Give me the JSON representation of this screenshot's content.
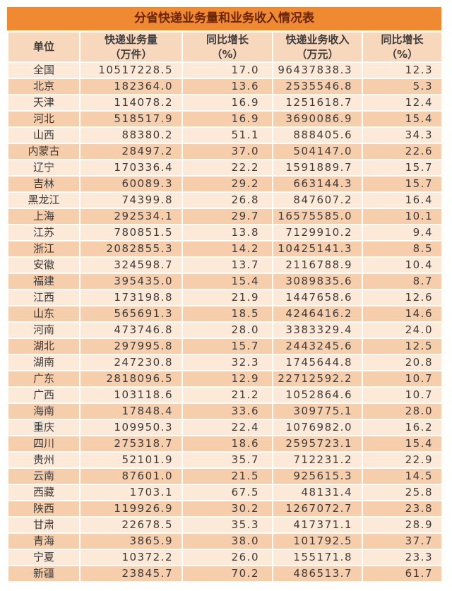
{
  "title": "分省快递业务量和业务收入情况表",
  "colors": {
    "title_bar_bg": "#EF8A33",
    "title_text": "#6B2503",
    "header_bg": "#F8D8BC",
    "row_light": "#FCE9D7",
    "row_dark": "#F7CEAB",
    "grid_line": "#FFFFFF",
    "body_text": "#3C3C3C"
  },
  "chart_data": {
    "type": "table",
    "title": "分省快递业务量和业务收入情况表",
    "columns": [
      {
        "line1": "单位",
        "line2": ""
      },
      {
        "line1": "快递业务量",
        "line2": "（万件）"
      },
      {
        "line1": "同比增长",
        "line2": "（%）"
      },
      {
        "line1": "快递业务收入",
        "line2": "（万元）"
      },
      {
        "line1": "同比增长",
        "line2": "（%）"
      }
    ],
    "rows": [
      {
        "region": "全国",
        "volume": "10517228.5",
        "volume_yoy": "17.0",
        "revenue": "96437838.3",
        "revenue_yoy": "12.3"
      },
      {
        "region": "北京",
        "volume": "182364.0",
        "volume_yoy": "13.6",
        "revenue": "2535546.8",
        "revenue_yoy": "5.3"
      },
      {
        "region": "天津",
        "volume": "114078.2",
        "volume_yoy": "16.9",
        "revenue": "1251618.7",
        "revenue_yoy": "12.4"
      },
      {
        "region": "河北",
        "volume": "518517.9",
        "volume_yoy": "16.9",
        "revenue": "3690086.9",
        "revenue_yoy": "15.4"
      },
      {
        "region": "山西",
        "volume": "88380.2",
        "volume_yoy": "51.1",
        "revenue": "888405.6",
        "revenue_yoy": "34.3"
      },
      {
        "region": "内蒙古",
        "volume": "28497.2",
        "volume_yoy": "37.0",
        "revenue": "504147.0",
        "revenue_yoy": "22.6"
      },
      {
        "region": "辽宁",
        "volume": "170336.4",
        "volume_yoy": "22.2",
        "revenue": "1591889.7",
        "revenue_yoy": "15.7"
      },
      {
        "region": "吉林",
        "volume": "60089.3",
        "volume_yoy": "29.2",
        "revenue": "663144.3",
        "revenue_yoy": "15.7"
      },
      {
        "region": "黑龙江",
        "volume": "74399.8",
        "volume_yoy": "26.8",
        "revenue": "847607.2",
        "revenue_yoy": "16.4"
      },
      {
        "region": "上海",
        "volume": "292534.1",
        "volume_yoy": "29.7",
        "revenue": "16575585.0",
        "revenue_yoy": "10.1"
      },
      {
        "region": "江苏",
        "volume": "780851.5",
        "volume_yoy": "13.8",
        "revenue": "7129910.2",
        "revenue_yoy": "9.4"
      },
      {
        "region": "浙江",
        "volume": "2082855.3",
        "volume_yoy": "14.2",
        "revenue": "10425141.3",
        "revenue_yoy": "8.5"
      },
      {
        "region": "安徽",
        "volume": "324598.7",
        "volume_yoy": "13.7",
        "revenue": "2116788.9",
        "revenue_yoy": "10.4"
      },
      {
        "region": "福建",
        "volume": "395435.0",
        "volume_yoy": "15.4",
        "revenue": "3089835.6",
        "revenue_yoy": "8.7"
      },
      {
        "region": "江西",
        "volume": "173198.8",
        "volume_yoy": "21.9",
        "revenue": "1447658.6",
        "revenue_yoy": "12.6"
      },
      {
        "region": "山东",
        "volume": "565691.3",
        "volume_yoy": "18.5",
        "revenue": "4246416.2",
        "revenue_yoy": "14.6"
      },
      {
        "region": "河南",
        "volume": "473746.8",
        "volume_yoy": "28.0",
        "revenue": "3383329.4",
        "revenue_yoy": "24.0"
      },
      {
        "region": "湖北",
        "volume": "297995.8",
        "volume_yoy": "15.7",
        "revenue": "2443245.6",
        "revenue_yoy": "12.5"
      },
      {
        "region": "湖南",
        "volume": "247230.8",
        "volume_yoy": "32.3",
        "revenue": "1745644.8",
        "revenue_yoy": "20.8"
      },
      {
        "region": "广东",
        "volume": "2818096.5",
        "volume_yoy": "12.9",
        "revenue": "22712592.2",
        "revenue_yoy": "10.7"
      },
      {
        "region": "广西",
        "volume": "103118.6",
        "volume_yoy": "21.2",
        "revenue": "1052864.6",
        "revenue_yoy": "10.7"
      },
      {
        "region": "海南",
        "volume": "17848.4",
        "volume_yoy": "33.6",
        "revenue": "309775.1",
        "revenue_yoy": "28.0"
      },
      {
        "region": "重庆",
        "volume": "109950.3",
        "volume_yoy": "22.4",
        "revenue": "1076982.0",
        "revenue_yoy": "16.2"
      },
      {
        "region": "四川",
        "volume": "275318.7",
        "volume_yoy": "18.6",
        "revenue": "2595723.1",
        "revenue_yoy": "15.4"
      },
      {
        "region": "贵州",
        "volume": "52101.9",
        "volume_yoy": "35.7",
        "revenue": "712231.2",
        "revenue_yoy": "22.9"
      },
      {
        "region": "云南",
        "volume": "87601.0",
        "volume_yoy": "21.5",
        "revenue": "925615.3",
        "revenue_yoy": "14.5"
      },
      {
        "region": "西藏",
        "volume": "1703.1",
        "volume_yoy": "67.5",
        "revenue": "48131.4",
        "revenue_yoy": "25.8"
      },
      {
        "region": "陕西",
        "volume": "119926.9",
        "volume_yoy": "30.2",
        "revenue": "1267072.7",
        "revenue_yoy": "23.8"
      },
      {
        "region": "甘肃",
        "volume": "22678.5",
        "volume_yoy": "35.3",
        "revenue": "417371.1",
        "revenue_yoy": "28.9"
      },
      {
        "region": "青海",
        "volume": "3865.9",
        "volume_yoy": "38.0",
        "revenue": "101792.5",
        "revenue_yoy": "37.7"
      },
      {
        "region": "宁夏",
        "volume": "10372.2",
        "volume_yoy": "26.0",
        "revenue": "155171.8",
        "revenue_yoy": "23.3"
      },
      {
        "region": "新疆",
        "volume": "23845.7",
        "volume_yoy": "70.2",
        "revenue": "486513.7",
        "revenue_yoy": "61.7"
      }
    ]
  }
}
